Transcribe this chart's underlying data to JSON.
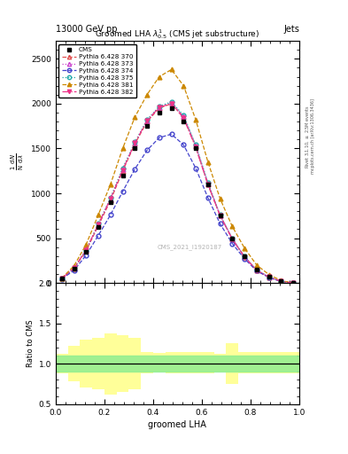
{
  "title": "13000 GeV pp",
  "title_right": "Jets",
  "plot_title": "Groomed LHA $\\lambda^{1}_{0.5}$ (CMS jet substructure)",
  "xlabel": "groomed LHA",
  "ylabel_ratio": "Ratio to CMS",
  "watermark": "CMS_2021_I1920187",
  "right_label": "Rivet 3.1.10, $\\geq$ 2.5M events",
  "right_label2": "mcplots.cern.ch [arXiv:1306.3436]",
  "xbins": [
    0.0,
    0.05,
    0.1,
    0.15,
    0.2,
    0.25,
    0.3,
    0.35,
    0.4,
    0.45,
    0.5,
    0.55,
    0.6,
    0.65,
    0.7,
    0.75,
    0.8,
    0.85,
    0.9,
    0.95,
    1.0
  ],
  "cms_y": [
    50,
    160,
    350,
    620,
    900,
    1200,
    1500,
    1750,
    1900,
    1950,
    1800,
    1500,
    1100,
    750,
    500,
    300,
    150,
    70,
    20,
    0
  ],
  "series": [
    {
      "label": "Pythia 6.428 370",
      "color": "#e05050",
      "linestyle": "--",
      "marker": "^",
      "fillstyle": "none",
      "y": [
        50,
        160,
        360,
        640,
        920,
        1250,
        1550,
        1800,
        1950,
        2000,
        1850,
        1520,
        1100,
        750,
        490,
        290,
        140,
        65,
        18,
        0
      ]
    },
    {
      "label": "Pythia 6.428 373",
      "color": "#cc44cc",
      "linestyle": ":",
      "marker": "^",
      "fillstyle": "none",
      "y": [
        50,
        165,
        365,
        650,
        930,
        1270,
        1560,
        1810,
        1960,
        2010,
        1860,
        1530,
        1110,
        755,
        495,
        295,
        145,
        67,
        19,
        0
      ]
    },
    {
      "label": "Pythia 6.428 374",
      "color": "#4444cc",
      "linestyle": "--",
      "marker": "o",
      "fillstyle": "none",
      "y": [
        45,
        140,
        310,
        530,
        760,
        1020,
        1270,
        1480,
        1620,
        1660,
        1540,
        1280,
        950,
        660,
        440,
        270,
        135,
        62,
        17,
        0
      ]
    },
    {
      "label": "Pythia 6.428 375",
      "color": "#22aaaa",
      "linestyle": ":",
      "marker": "o",
      "fillstyle": "none",
      "y": [
        50,
        165,
        370,
        660,
        950,
        1280,
        1570,
        1820,
        1970,
        2020,
        1870,
        1540,
        1120,
        760,
        498,
        296,
        146,
        68,
        19,
        0
      ]
    },
    {
      "label": "Pythia 6.428 381",
      "color": "#cc8800",
      "linestyle": "--",
      "marker": "^",
      "fillstyle": "full",
      "y": [
        55,
        190,
        430,
        760,
        1100,
        1500,
        1850,
        2100,
        2300,
        2380,
        2200,
        1820,
        1350,
        940,
        630,
        390,
        200,
        95,
        27,
        0
      ]
    },
    {
      "label": "Pythia 6.428 382",
      "color": "#ee3388",
      "linestyle": "-.",
      "marker": "v",
      "fillstyle": "full",
      "y": [
        50,
        165,
        370,
        655,
        940,
        1260,
        1560,
        1810,
        1960,
        2000,
        1840,
        1510,
        1100,
        750,
        490,
        290,
        143,
        66,
        19,
        0
      ]
    }
  ],
  "ylim_main": [
    0,
    2700
  ],
  "ylim_ratio": [
    0.5,
    2.0
  ],
  "yticks_main": [
    0,
    500,
    1000,
    1500,
    2000,
    2500
  ],
  "yticks_ratio": [
    0.5,
    1.0,
    1.5,
    2.0
  ],
  "yellow_x_edges": [
    0.0,
    0.05,
    0.1,
    0.15,
    0.2,
    0.25,
    0.3,
    0.35,
    0.4,
    0.45,
    0.5,
    0.55,
    0.6,
    0.65,
    0.7,
    0.75,
    0.8,
    0.85,
    0.9,
    0.95,
    1.0
  ],
  "yellow_lo": [
    0.88,
    0.78,
    0.7,
    0.68,
    0.62,
    0.65,
    0.68,
    0.88,
    0.9,
    0.88,
    0.88,
    0.88,
    0.88,
    0.9,
    0.75,
    0.88,
    0.88,
    0.88,
    0.88,
    0.88
  ],
  "yellow_hi": [
    1.12,
    1.22,
    1.3,
    1.32,
    1.38,
    1.35,
    1.32,
    1.15,
    1.13,
    1.15,
    1.15,
    1.15,
    1.15,
    1.12,
    1.25,
    1.15,
    1.15,
    1.15,
    1.15,
    1.15
  ],
  "green_lo": 0.9,
  "green_hi": 1.1
}
